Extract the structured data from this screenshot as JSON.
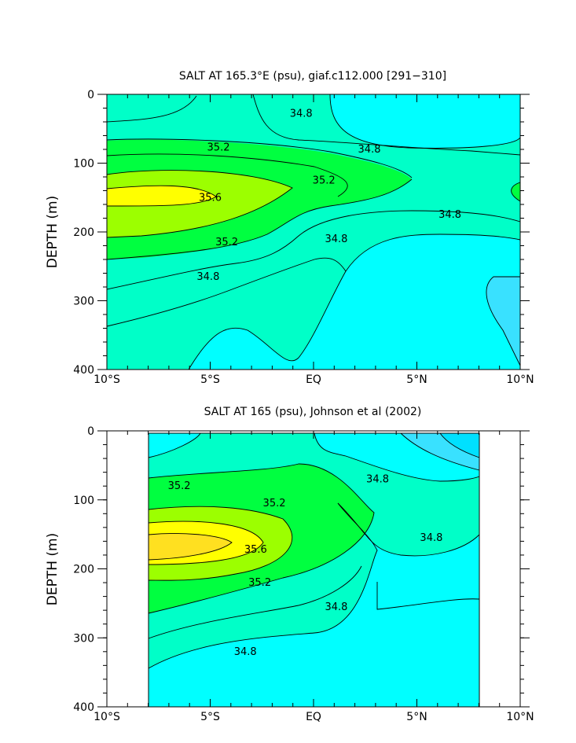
{
  "chart_data": [
    {
      "type": "contour",
      "title": "SALT AT 165.3°E (psu), giaf.c112.000 [291−310]",
      "ylabel": "DEPTH (m)",
      "xlabel": "",
      "x_range_deg_lat": [
        -10,
        10
      ],
      "y_range_m": [
        0,
        400
      ],
      "x_ticks": [
        "10°S",
        "5°S",
        "EQ",
        "5°N",
        "10°N"
      ],
      "y_ticks": [
        "0",
        "100",
        "200",
        "300",
        "400"
      ],
      "contour_levels": [
        34.8,
        35.0,
        35.2,
        35.4,
        35.6
      ],
      "contour_labels": [
        {
          "text": "34.8",
          "lat": -0.6,
          "depth": 28
        },
        {
          "text": "34.8",
          "lat": 2.7,
          "depth": 80
        },
        {
          "text": "34.8",
          "lat": 6.6,
          "depth": 175
        },
        {
          "text": "34.8",
          "lat": 1.1,
          "depth": 210
        },
        {
          "text": "34.8",
          "lat": -5.1,
          "depth": 265
        },
        {
          "text": "35.2",
          "lat": -4.6,
          "depth": 77
        },
        {
          "text": "35.2",
          "lat": 0.5,
          "depth": 125
        },
        {
          "text": "35.2",
          "lat": -4.2,
          "depth": 215
        },
        {
          "text": "35.6",
          "lat": -5.0,
          "depth": 150
        }
      ],
      "colors": {
        "s34_6": "#39e1ff",
        "s34_8": "#00ffff",
        "s35_0": "#00ffc8",
        "s35_2": "#00ff40",
        "s35_4": "#9cff00",
        "s35_6": "#ffff00",
        "s35_8": "#ffe020"
      }
    },
    {
      "type": "contour",
      "title": "SALT AT 165 (psu), Johnson et al (2002)",
      "ylabel": "DEPTH (m)",
      "xlabel": "",
      "x_range_deg_lat": [
        -10,
        10
      ],
      "data_x_range_deg_lat": [
        -8,
        8
      ],
      "y_range_m": [
        0,
        400
      ],
      "x_ticks": [
        "10°S",
        "5°S",
        "EQ",
        "5°N",
        "10°N"
      ],
      "y_ticks": [
        "0",
        "100",
        "200",
        "300",
        "400"
      ],
      "contour_levels": [
        34.6,
        34.8,
        35.0,
        35.2,
        35.4,
        35.6
      ],
      "contour_labels": [
        {
          "text": "34.8",
          "lat": 3.1,
          "depth": 70
        },
        {
          "text": "34.8",
          "lat": 5.7,
          "depth": 155
        },
        {
          "text": "34.8",
          "lat": 1.1,
          "depth": 255
        },
        {
          "text": "34.8",
          "lat": -3.3,
          "depth": 320
        },
        {
          "text": "35.2",
          "lat": -6.5,
          "depth": 80
        },
        {
          "text": "35.2",
          "lat": -1.9,
          "depth": 105
        },
        {
          "text": "35.2",
          "lat": -2.6,
          "depth": 220
        },
        {
          "text": "35.6",
          "lat": -2.8,
          "depth": 172
        }
      ]
    }
  ]
}
